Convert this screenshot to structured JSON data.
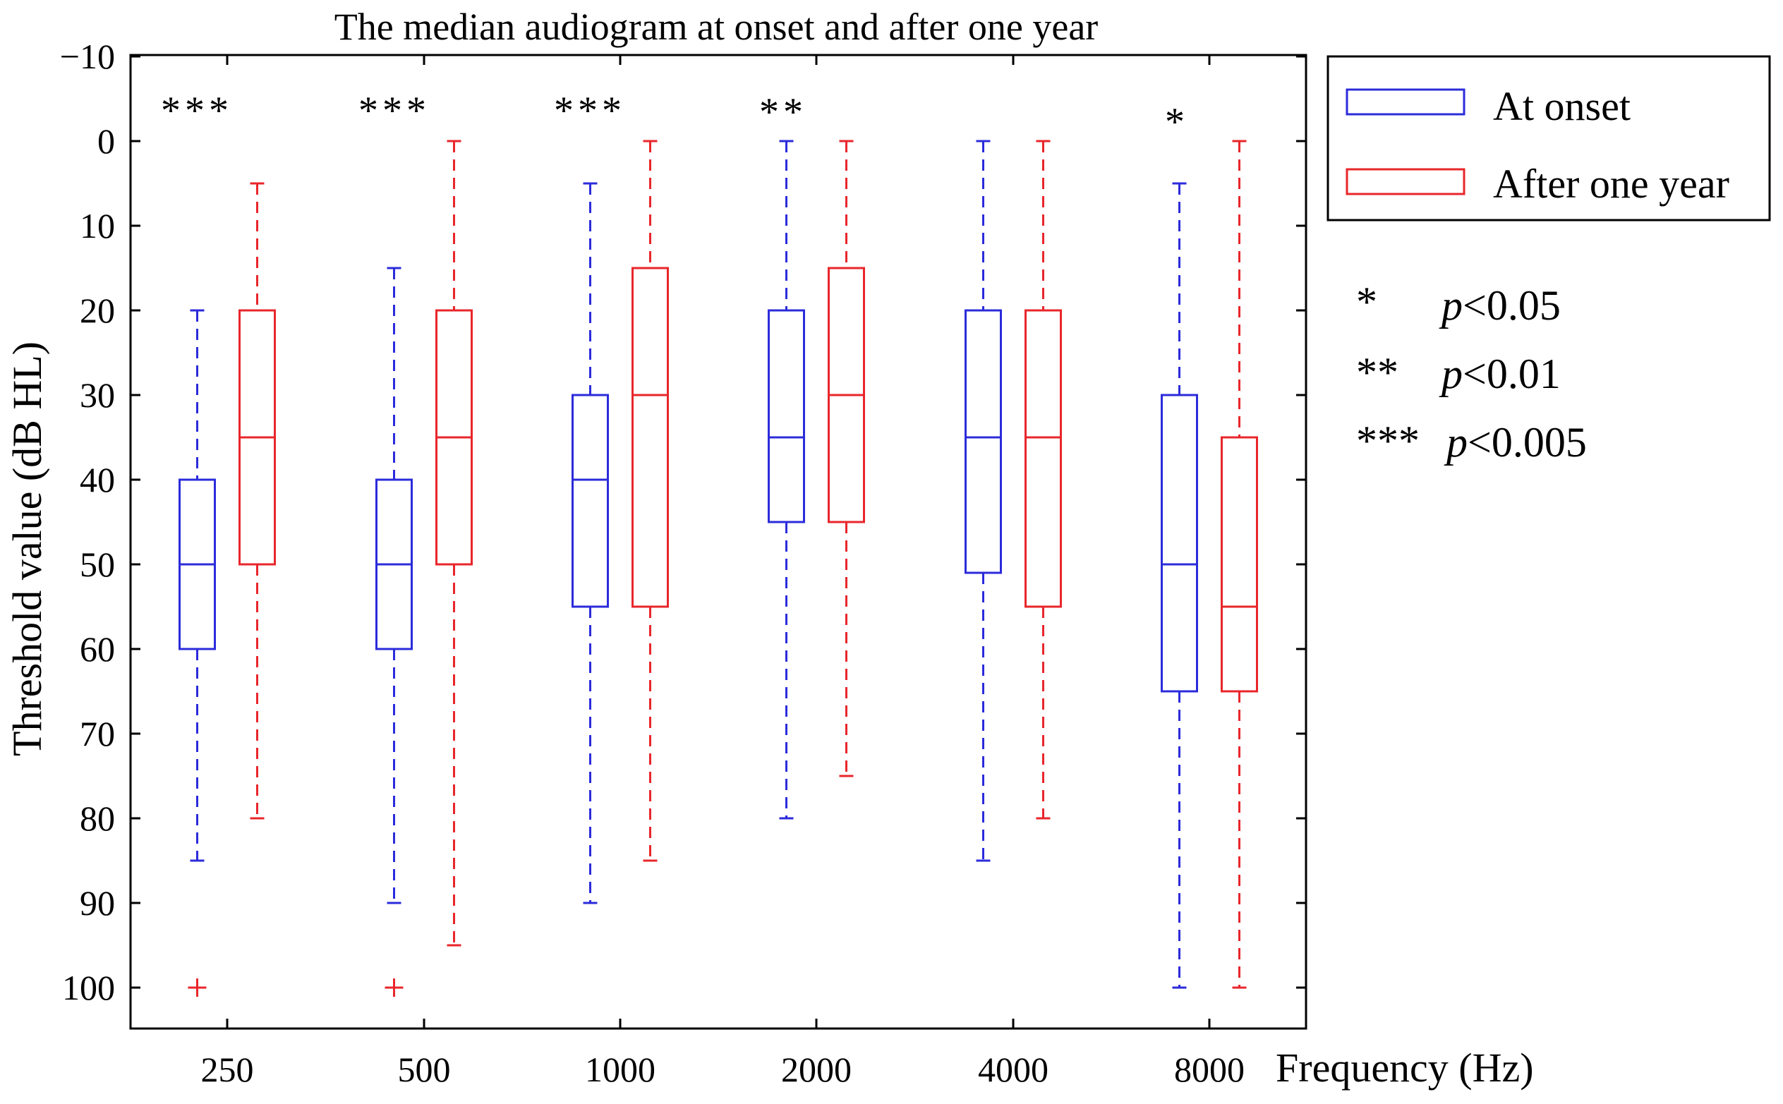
{
  "chart_data": {
    "type": "box",
    "title": "The median audiogram at onset and after one year",
    "xlabel": "Frequency (Hz)",
    "ylabel": "Threshold value (dB HL)",
    "ylim": [
      -10,
      105
    ],
    "y_inverted": true,
    "yticks": [
      -10,
      0,
      10,
      20,
      30,
      40,
      50,
      60,
      70,
      80,
      90,
      100
    ],
    "categories": [
      "250",
      "500",
      "1000",
      "2000",
      "4000",
      "8000"
    ],
    "series": [
      {
        "name": "At onset",
        "color": "#2b2bdb",
        "boxes": [
          {
            "whisker_low": 20,
            "q1": 40,
            "median": 50,
            "q3": 60,
            "whisker_high": 85,
            "outliers": [
              100
            ]
          },
          {
            "whisker_low": 15,
            "q1": 40,
            "median": 50,
            "q3": 60,
            "whisker_high": 90,
            "outliers": [
              100
            ]
          },
          {
            "whisker_low": 5,
            "q1": 30,
            "median": 40,
            "q3": 55,
            "whisker_high": 90,
            "outliers": []
          },
          {
            "whisker_low": 0,
            "q1": 20,
            "median": 35,
            "q3": 45,
            "whisker_high": 80,
            "outliers": []
          },
          {
            "whisker_low": 0,
            "q1": 20,
            "median": 35,
            "q3": 51,
            "whisker_high": 85,
            "outliers": []
          },
          {
            "whisker_low": 5,
            "q1": 30,
            "median": 50,
            "q3": 65,
            "whisker_high": 100,
            "outliers": []
          }
        ]
      },
      {
        "name": "After one year",
        "color": "#e8262b",
        "boxes": [
          {
            "whisker_low": 5,
            "q1": 20,
            "median": 35,
            "q3": 50,
            "whisker_high": 80,
            "outliers": []
          },
          {
            "whisker_low": 0,
            "q1": 20,
            "median": 35,
            "q3": 50,
            "whisker_high": 95,
            "outliers": []
          },
          {
            "whisker_low": 0,
            "q1": 15,
            "median": 30,
            "q3": 55,
            "whisker_high": 85,
            "outliers": []
          },
          {
            "whisker_low": 0,
            "q1": 15,
            "median": 30,
            "q3": 45,
            "whisker_high": 75,
            "outliers": []
          },
          {
            "whisker_low": 0,
            "q1": 20,
            "median": 35,
            "q3": 55,
            "whisker_high": 80,
            "outliers": []
          },
          {
            "whisker_low": 0,
            "q1": 35,
            "median": 55,
            "q3": 65,
            "whisker_high": 100,
            "outliers": []
          }
        ]
      }
    ],
    "outlier_marker": "+",
    "significance": [
      "***",
      "***",
      "***",
      "**",
      "",
      "*"
    ],
    "significance_notes": [
      {
        "stars": "*",
        "p": "p",
        "threshold": "<0.05"
      },
      {
        "stars": "**",
        "p": "p",
        "threshold": "<0.01"
      },
      {
        "stars": "***",
        "p": "p",
        "threshold": "<0.005"
      }
    ],
    "legend_position": "outside-top-right",
    "grid": false
  }
}
